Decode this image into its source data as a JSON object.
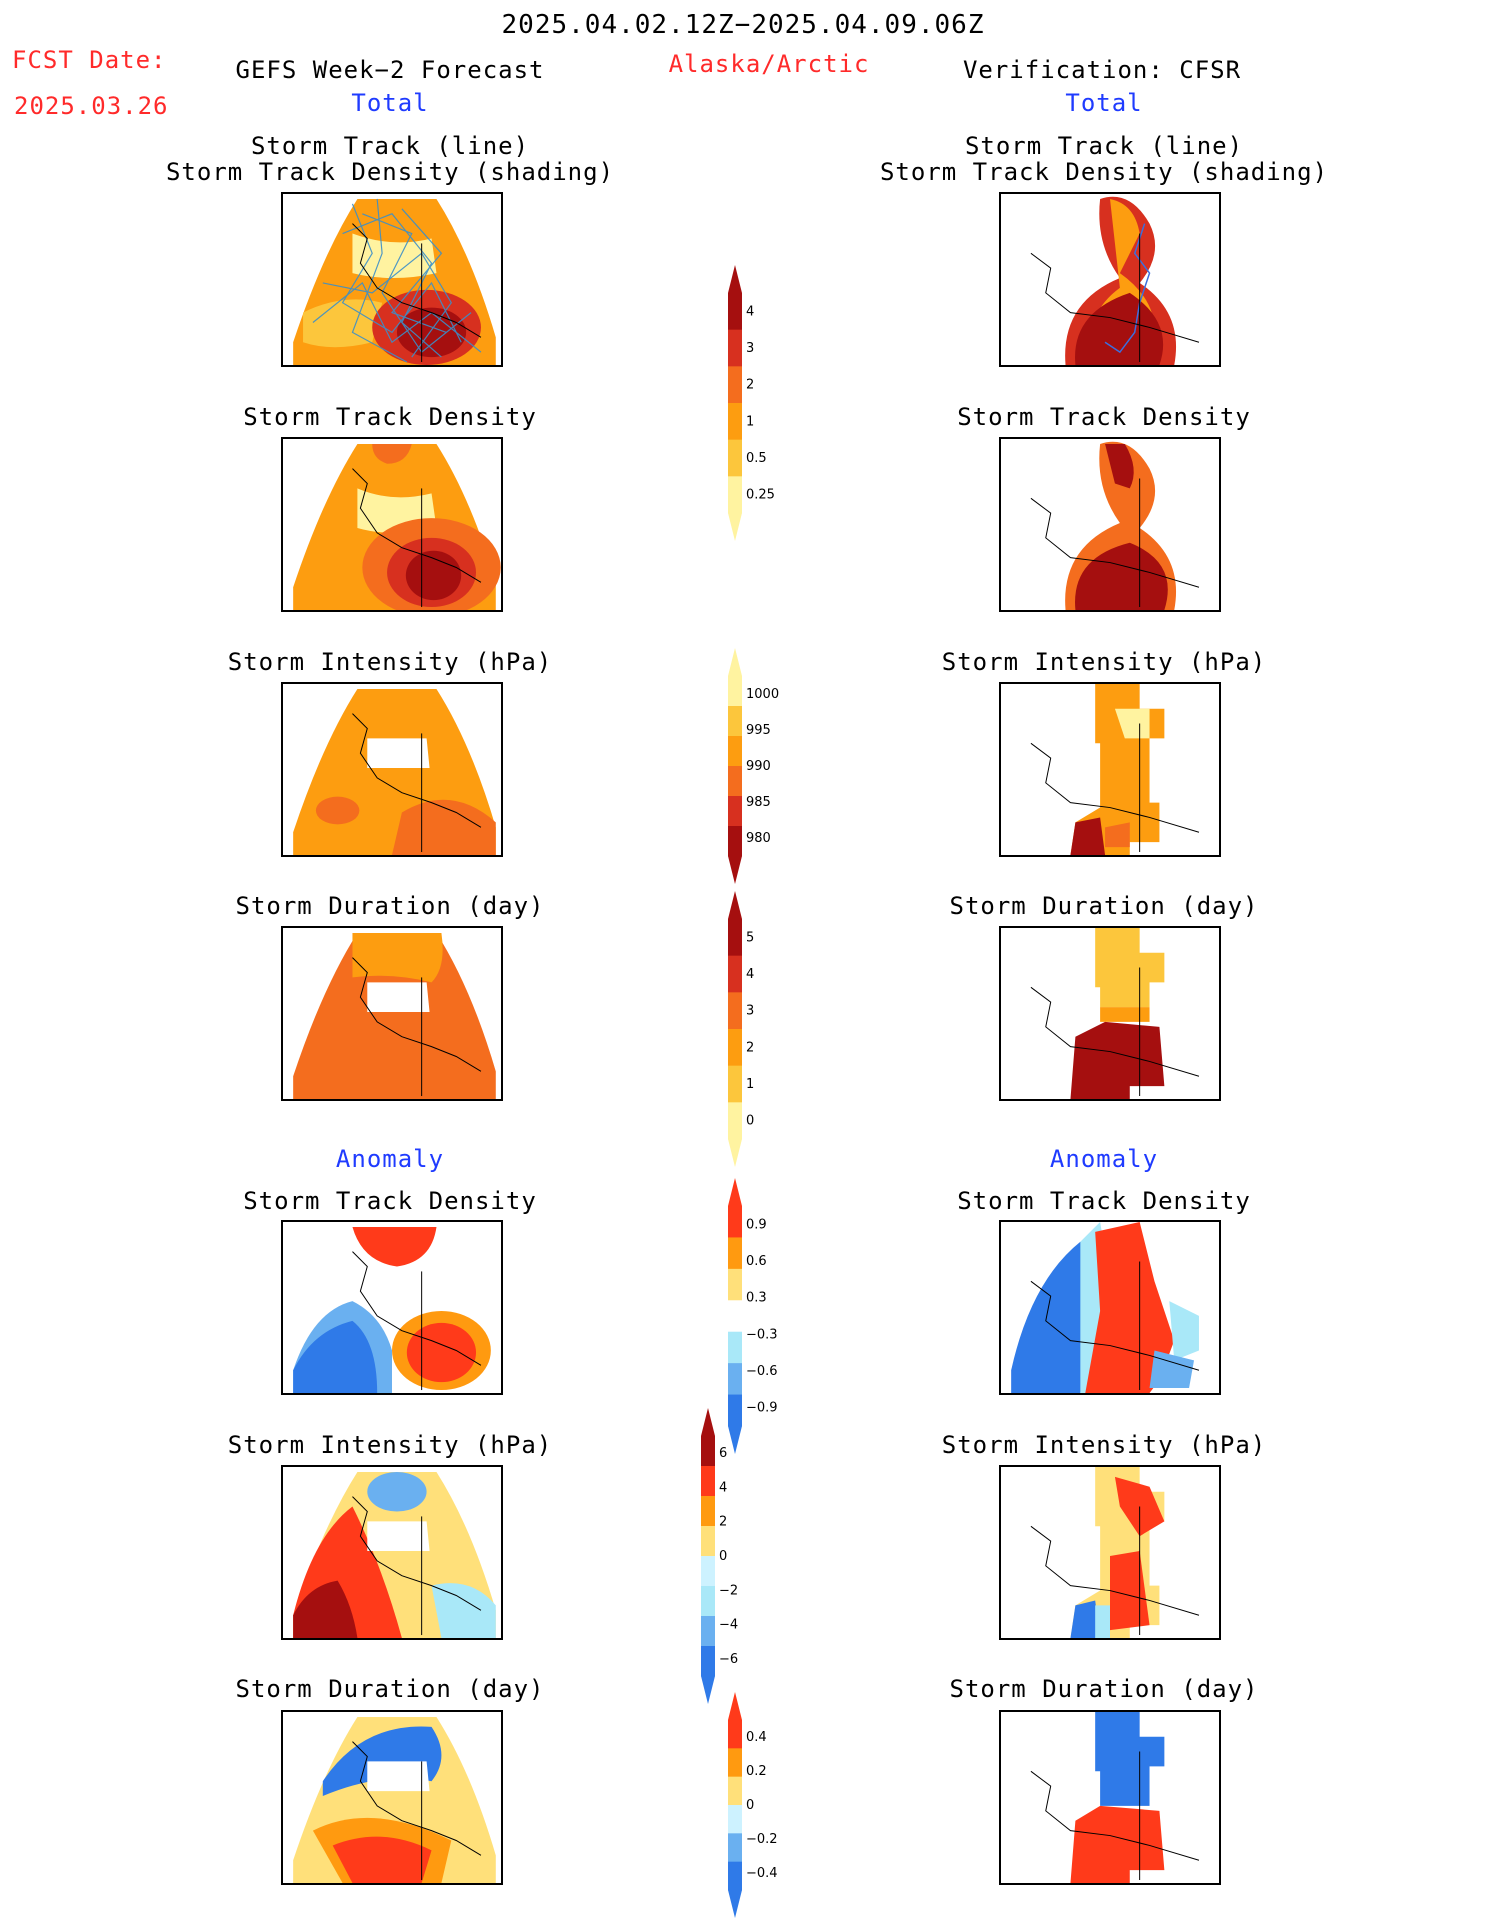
{
  "header": {
    "date_range": "2025.04.02.12Z−2025.04.09.06Z",
    "region": "Alaska/Arctic",
    "fcst_label": "FCST Date:",
    "fcst_date": "2025.03.26",
    "left_title": "GEFS Week−2 Forecast",
    "right_title": "Verification: CFSR",
    "total_label": "Total",
    "anomaly_label": "Anomaly"
  },
  "panel_titles": {
    "track_line": "Storm Track (line)",
    "track_shading": "Storm Track Density (shading)",
    "density": "Storm Track Density",
    "intensity": "Storm Intensity (hPa)",
    "duration": "Storm Duration (day)"
  },
  "colorbars": {
    "density_total": {
      "labels": [
        "4",
        "3",
        "2",
        "1",
        "0.5",
        "0.25"
      ],
      "colors": [
        "#a50f0f",
        "#d7301f",
        "#f46d1e",
        "#fd9d10",
        "#fcc63c",
        "#fff3a0"
      ]
    },
    "intensity_total": {
      "labels": [
        "1000",
        "995",
        "990",
        "985",
        "980"
      ],
      "colors": [
        "#fff3a0",
        "#fcc63c",
        "#fd9d10",
        "#f46d1e",
        "#d7301f",
        "#a50f0f"
      ]
    },
    "duration_total": {
      "labels": [
        "5",
        "4",
        "3",
        "2",
        "1",
        "0"
      ],
      "colors": [
        "#a50f0f",
        "#d7301f",
        "#f46d1e",
        "#fd9d10",
        "#fcc63c",
        "#fff3a0"
      ]
    },
    "density_anom": {
      "labels": [
        "0.9",
        "0.6",
        "0.3",
        "−0.3",
        "−0.6",
        "−0.9"
      ],
      "colors": [
        "#ff3a1a",
        "#ff9a10",
        "#ffe07a",
        "#ffffff",
        "#a9e8f8",
        "#6ab0f0",
        "#2f7ae8"
      ]
    },
    "intensity_anom": {
      "labels": [
        "6",
        "4",
        "2",
        "0",
        "−2",
        "−4",
        "−6"
      ],
      "colors": [
        "#a50f0f",
        "#ff3a1a",
        "#ff9a10",
        "#ffe07a",
        "#cdf2ff",
        "#a9e8f8",
        "#6ab0f0",
        "#2f7ae8"
      ]
    },
    "duration_anom": {
      "labels": [
        "0.4",
        "0.2",
        "0",
        "−0.2",
        "−0.4"
      ],
      "colors": [
        "#ff3a1a",
        "#ff9a10",
        "#ffe07a",
        "#cdf2ff",
        "#6ab0f0",
        "#2f7ae8"
      ]
    }
  }
}
